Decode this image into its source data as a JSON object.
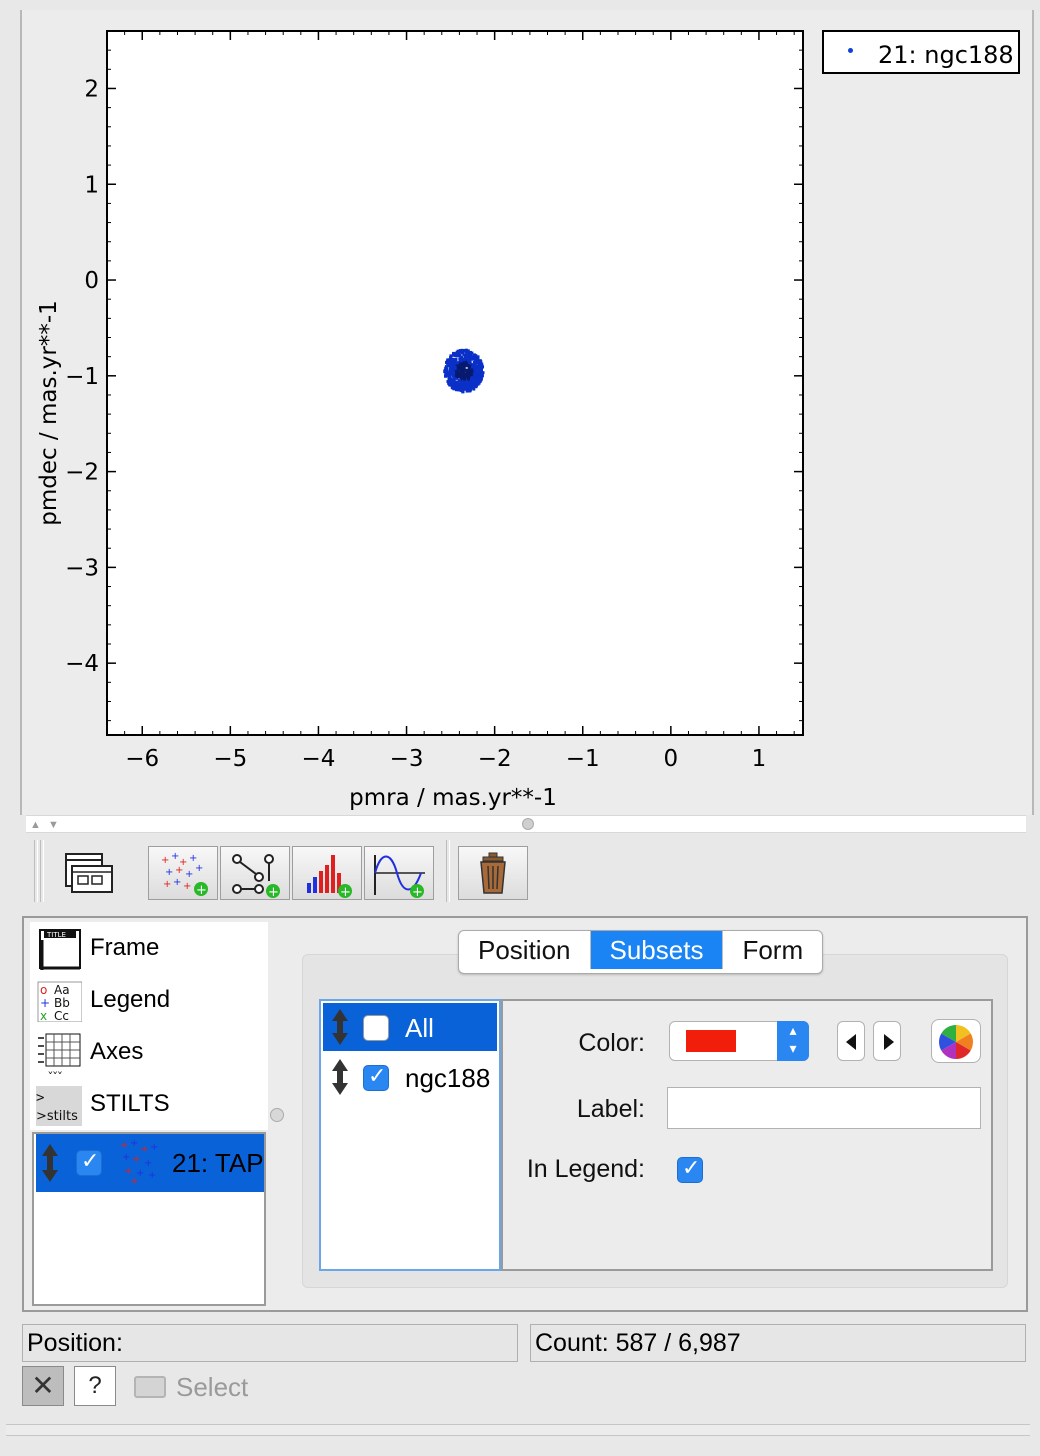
{
  "legend": {
    "entry": "21: ngc188",
    "dot_color": "#1040d8"
  },
  "chart_data": {
    "type": "scatter",
    "xlabel": "pmra / mas.yr**-1",
    "ylabel": "pmdec / mas.yr**-1",
    "xlim": [
      -6.4,
      1.5
    ],
    "ylim": [
      -4.75,
      2.6
    ],
    "xticks": [
      -6,
      -5,
      -4,
      -3,
      -2,
      -1,
      0,
      1
    ],
    "xtick_labels": [
      "−6",
      "−5",
      "−4",
      "−3",
      "−2",
      "−1",
      "0",
      "1"
    ],
    "yticks": [
      2,
      1,
      0,
      -1,
      -2,
      -3,
      -4
    ],
    "ytick_labels": [
      "2",
      "1",
      "0",
      "−1",
      "−2",
      "−3",
      "−4"
    ],
    "series": [
      {
        "name": "21: ngc188",
        "color": "#0a30c8",
        "center": [
          -2.35,
          -0.95
        ],
        "spread": [
          0.22,
          0.22
        ],
        "count": 587
      }
    ],
    "grid": false,
    "legend_position": "top-right outside"
  },
  "toolbar": {
    "buttons": [
      "window-icon",
      "add-position-plot-icon",
      "add-pair-plot-icon",
      "add-histogram-plot-icon",
      "add-function-plot-icon",
      "delete-layer-icon"
    ]
  },
  "layers": {
    "fixed": [
      "Frame",
      "Legend",
      "Axes",
      "STILTS"
    ],
    "plot_layer": "21: TAP",
    "plot_layer_checked": true
  },
  "tabs": [
    {
      "label": "Position",
      "active": false
    },
    {
      "label": "Subsets",
      "active": true
    },
    {
      "label": "Form",
      "active": false
    }
  ],
  "subsets": [
    {
      "label": "All",
      "checked": false,
      "selected": true
    },
    {
      "label": "ngc188",
      "checked": true,
      "selected": false
    }
  ],
  "style": {
    "color_label": "Color:",
    "color_value": "#f01e0a",
    "label_label": "Label:",
    "label_value": "",
    "in_legend_label": "In Legend:",
    "in_legend_checked": true
  },
  "status": {
    "position": "Position:",
    "count": "Count: 587 / 6,987"
  },
  "bottom": {
    "close_symbol": "✕",
    "help_symbol": "?",
    "select_label": "Select"
  }
}
